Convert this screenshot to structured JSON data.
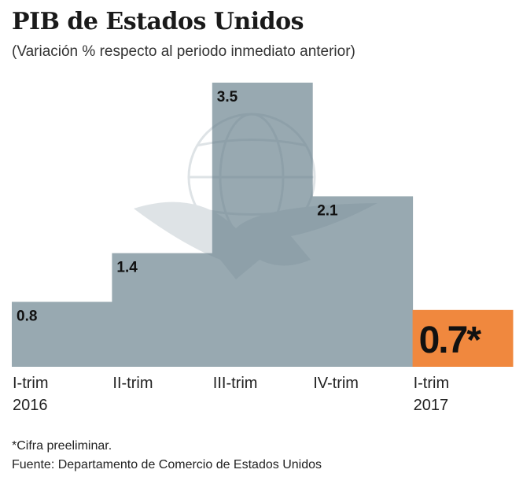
{
  "header": {
    "title": "PIB de Estados Unidos",
    "subtitle": "(Variación % respecto al periodo inmediato anterior)"
  },
  "footer": {
    "note": "*Cifra preeliminar.",
    "source": "Fuente: Departamento de Comercio de Estados Unidos"
  },
  "colors": {
    "bar": "#98a9b1",
    "highlight": "#f0883e",
    "watermark": "#6f8591"
  },
  "watermark_icon": "eagle-globe-logo",
  "chart_data": {
    "type": "bar",
    "title": "PIB de Estados Unidos",
    "subtitle": "(Variación % respecto al periodo inmediato anterior)",
    "categories": [
      [
        "I-trim",
        "2016"
      ],
      [
        "II-trim"
      ],
      [
        "III-trim"
      ],
      [
        "IV-trim"
      ],
      [
        "I-trim",
        "2017"
      ]
    ],
    "values": [
      0.8,
      1.4,
      3.5,
      2.1,
      0.7
    ],
    "value_labels": [
      "0.8",
      "1.4",
      "3.5",
      "2.1",
      "0.7*"
    ],
    "highlight_index": 4,
    "ylim": [
      0,
      3.5
    ],
    "xlabel": "",
    "ylabel": "",
    "grid": false,
    "legend": "none"
  }
}
